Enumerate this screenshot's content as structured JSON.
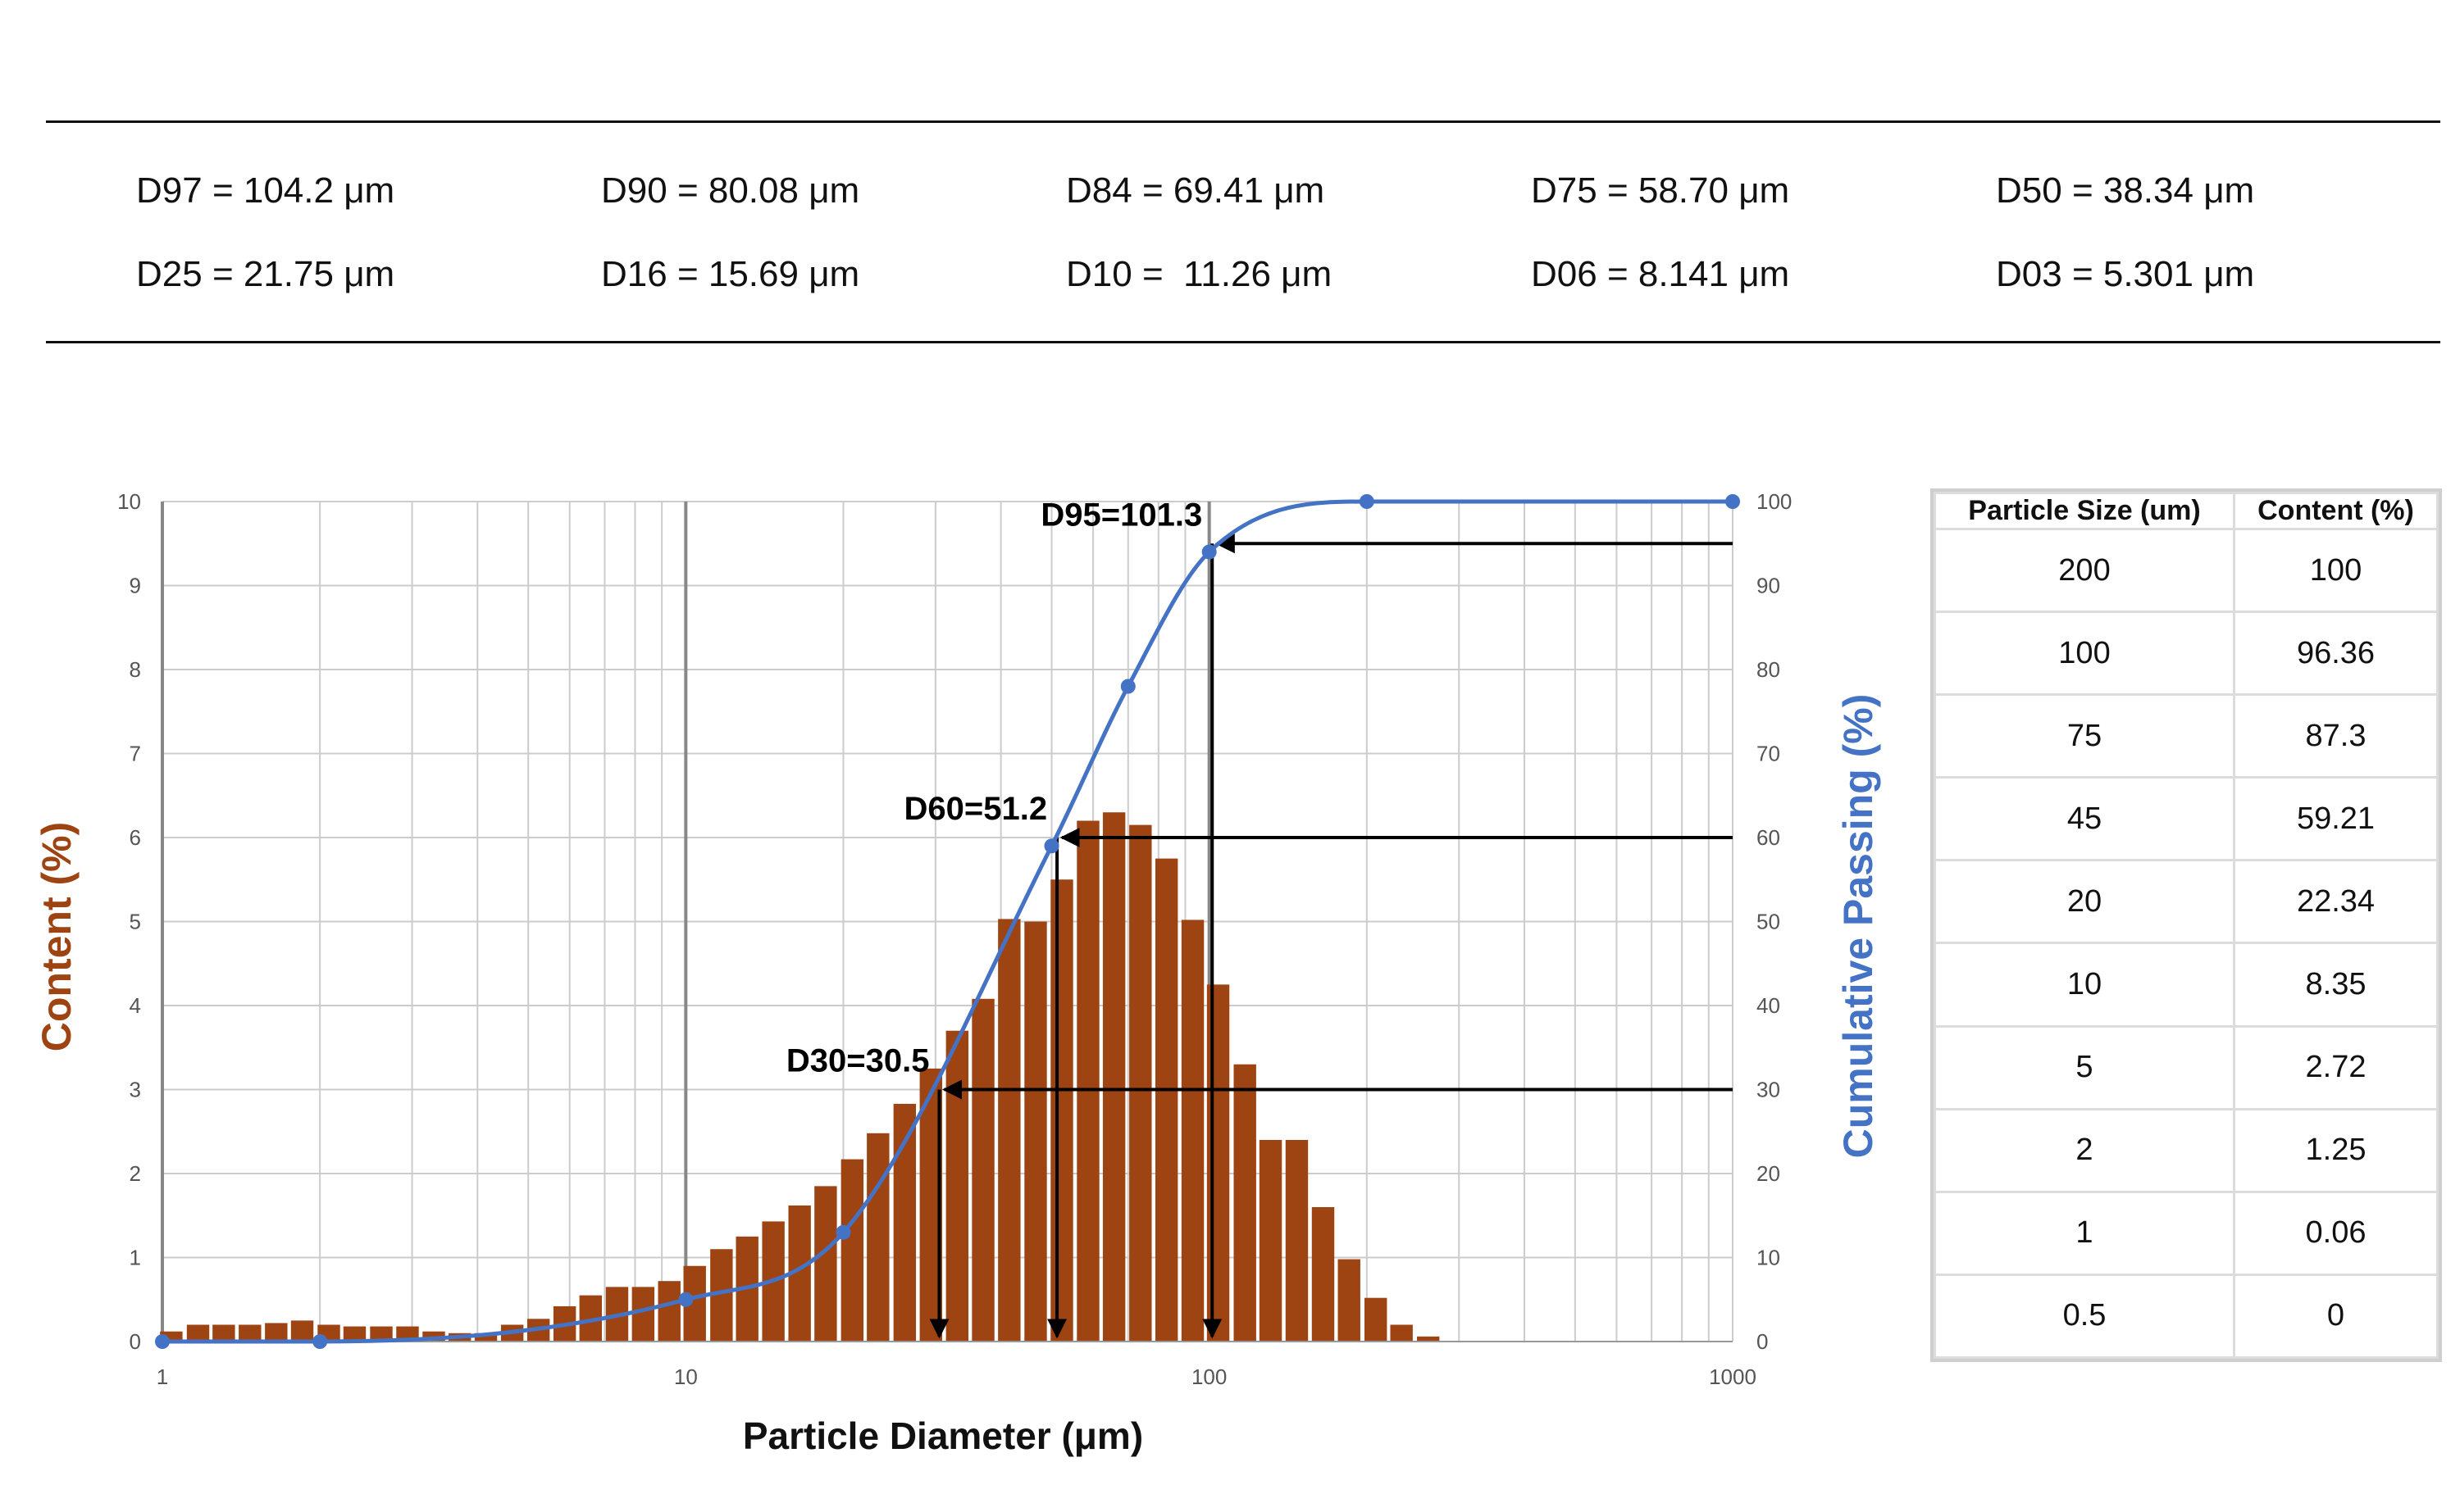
{
  "d_values": {
    "row1": [
      "D97 = 104.2 μm",
      "D90 = 80.08 μm",
      "D84 = 69.41 μm",
      "D75 = 58.70 μm",
      "D50 = 38.34 μm"
    ],
    "row2": [
      "D25 = 21.75 μm",
      "D16 = 15.69 μm",
      "D10 =  11.26 μm",
      "D06 = 8.141 μm",
      "D03 = 5.301 μm"
    ]
  },
  "table": {
    "headers": [
      "Particle Size (um)",
      "Content (%)"
    ],
    "rows": [
      [
        "200",
        "100"
      ],
      [
        "100",
        "96.36"
      ],
      [
        "75",
        "87.3"
      ],
      [
        "45",
        "59.21"
      ],
      [
        "20",
        "22.34"
      ],
      [
        "10",
        "8.35"
      ],
      [
        "5",
        "2.72"
      ],
      [
        "2",
        "1.25"
      ],
      [
        "1",
        "0.06"
      ],
      [
        "0.5",
        "0"
      ]
    ]
  },
  "colors": {
    "bars": "#9e4312",
    "curve": "#4472c4",
    "left_axis_title": "#9e4312",
    "right_axis_title": "#4472c4",
    "annotation": "#000000",
    "grid_minor": "#cccccc",
    "grid_major": "#888888"
  },
  "chart_data": {
    "type": "bar",
    "xlabel": "Particle Diameter (μm)",
    "ylabel": "Content (%)",
    "y2label": "Cumulative Passing (%)",
    "x_scale": "log",
    "xlim": [
      1,
      1000
    ],
    "ylim": [
      0,
      10
    ],
    "y2lim": [
      0,
      100
    ],
    "x_ticks": [
      "1",
      "10",
      "100",
      "1000"
    ],
    "y_ticks": [
      "0",
      "1",
      "2",
      "3",
      "4",
      "5",
      "6",
      "7",
      "8",
      "9",
      "10"
    ],
    "y2_ticks": [
      "0",
      "10",
      "20",
      "30",
      "40",
      "50",
      "60",
      "70",
      "80",
      "90",
      "100"
    ],
    "grid": true,
    "series": [
      {
        "name": "Content (%)",
        "type": "bar",
        "x": [
          1.04,
          1.17,
          1.31,
          1.47,
          1.65,
          1.85,
          2.08,
          2.33,
          2.62,
          2.94,
          3.3,
          3.7,
          4.15,
          4.66,
          5.23,
          5.87,
          6.58,
          7.39,
          8.29,
          9.3,
          10.4,
          11.7,
          13.1,
          14.7,
          16.5,
          18.5,
          20.8,
          23.3,
          26.2,
          29.4,
          33.0,
          37.0,
          41.5,
          46.6,
          52.3,
          58.7,
          65.8,
          73.9,
          82.9,
          93.0,
          104,
          117,
          131,
          147,
          165,
          185,
          208,
          233,
          262
        ],
        "values": [
          0.12,
          0.2,
          0.2,
          0.2,
          0.22,
          0.25,
          0.2,
          0.18,
          0.18,
          0.18,
          0.12,
          0.1,
          0.1,
          0.2,
          0.27,
          0.42,
          0.55,
          0.65,
          0.65,
          0.72,
          0.9,
          1.1,
          1.25,
          1.43,
          1.62,
          1.85,
          2.17,
          2.48,
          2.83,
          3.25,
          3.7,
          4.08,
          5.03,
          5.0,
          5.5,
          6.2,
          6.3,
          6.15,
          5.75,
          5.02,
          4.25,
          3.3,
          2.4,
          2.4,
          1.6,
          0.98,
          0.52,
          0.2,
          0.06
        ]
      },
      {
        "name": "Cumulative Passing (%)",
        "type": "line",
        "x": [
          1,
          2,
          10,
          20,
          50,
          70,
          100,
          200,
          1000
        ],
        "values": [
          0,
          0,
          5,
          13,
          59,
          78,
          94,
          100,
          100
        ]
      }
    ],
    "annotations": [
      {
        "label": "D95=101.3",
        "x": 101.3,
        "y2": 95
      },
      {
        "label": "D60=51.2",
        "x": 51.2,
        "y2": 60
      },
      {
        "label": "D30=30.5",
        "x": 30.5,
        "y2": 30
      }
    ]
  }
}
